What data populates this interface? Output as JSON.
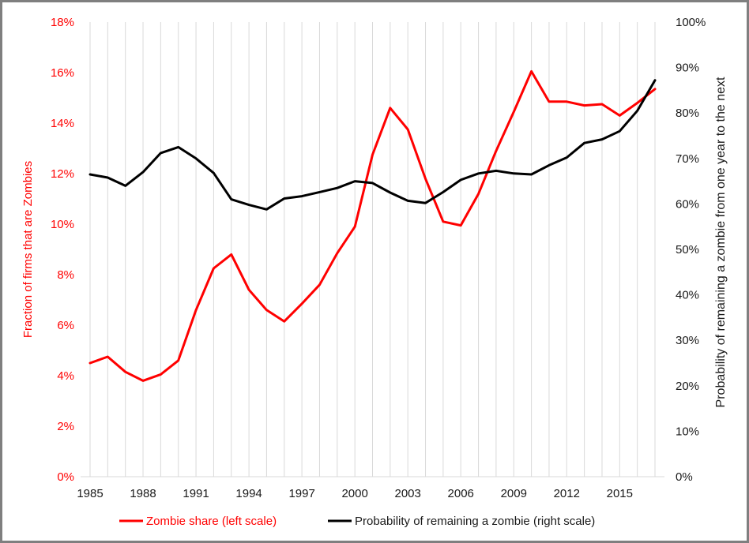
{
  "chart_data": {
    "type": "line",
    "title": "",
    "xlabel": "",
    "ylabel_left": "Fraction of firms that are Zombies",
    "ylabel_right": "Probability of remaining a zombie from one year to the next",
    "x": [
      1985,
      1986,
      1987,
      1988,
      1989,
      1990,
      1991,
      1992,
      1993,
      1994,
      1995,
      1996,
      1997,
      1998,
      1999,
      2000,
      2001,
      2002,
      2003,
      2004,
      2005,
      2006,
      2007,
      2008,
      2009,
      2010,
      2011,
      2012,
      2013,
      2014,
      2015,
      2016,
      2017
    ],
    "x_ticks": [
      "1985",
      "1988",
      "1991",
      "1994",
      "1997",
      "2000",
      "2003",
      "2006",
      "2009",
      "2012",
      "2015"
    ],
    "ylim_left": [
      0,
      18
    ],
    "ylim_right": [
      0,
      100
    ],
    "y_ticks_left": [
      "0%",
      "2%",
      "4%",
      "6%",
      "8%",
      "10%",
      "12%",
      "14%",
      "16%",
      "18%"
    ],
    "y_ticks_right": [
      "0%",
      "10%",
      "20%",
      "30%",
      "40%",
      "50%",
      "60%",
      "70%",
      "80%",
      "90%",
      "100%"
    ],
    "grid": "vertical",
    "legend_position": "bottom",
    "series": [
      {
        "name": "Zombie share (left scale)",
        "axis": "left",
        "color": "#ff0000",
        "values": [
          4.5,
          4.75,
          4.15,
          3.8,
          4.05,
          4.6,
          6.6,
          8.25,
          8.8,
          7.4,
          6.6,
          6.15,
          6.85,
          7.6,
          8.85,
          9.9,
          12.75,
          14.6,
          13.75,
          11.8,
          10.1,
          9.95,
          11.2,
          12.9,
          14.45,
          16.05,
          14.85,
          14.85,
          14.7,
          14.75,
          14.3,
          14.8,
          15.35
        ]
      },
      {
        "name": "Probability of remaining a zombie (right scale)",
        "axis": "right",
        "color": "#000000",
        "values": [
          66.5,
          65.8,
          64.0,
          67.0,
          71.2,
          72.5,
          70.0,
          66.8,
          61.0,
          59.8,
          58.8,
          61.2,
          61.7,
          62.6,
          63.5,
          65.0,
          64.6,
          62.5,
          60.7,
          60.2,
          62.6,
          65.3,
          66.7,
          67.3,
          66.7,
          66.5,
          68.5,
          70.2,
          73.4,
          74.2,
          76.0,
          80.5,
          87.2
        ]
      }
    ]
  }
}
